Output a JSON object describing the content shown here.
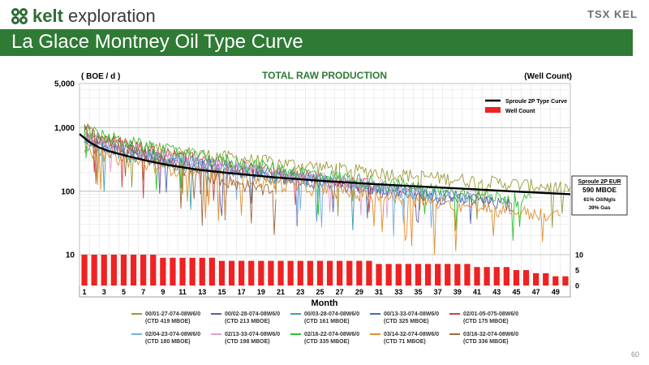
{
  "header": {
    "logo_text_bold": "kelt",
    "logo_text": "exploration",
    "tsx_logo": "TSX KEL",
    "title": "La Glace Montney Oil Type Curve",
    "page_number": "60"
  },
  "colors": {
    "banner": "#2f7a34",
    "logo_green": "#2e6b35",
    "bars": "#ee2222",
    "type_curve": "#000000"
  },
  "chart_data": {
    "type": "line",
    "title": "TOTAL RAW PRODUCTION",
    "ylabel_left": "( BOE / d )",
    "ylabel_right": "(Well Count)",
    "xlabel": "Month",
    "y_scale": "log",
    "ylim": [
      10,
      5000
    ],
    "y_ticks": [
      10,
      100,
      1000,
      5000
    ],
    "y_tick_labels": [
      "10",
      "100",
      "1,000",
      "5,000"
    ],
    "y2_ticks": [
      0,
      5,
      10
    ],
    "y2_tick_labels": [
      "0",
      "5",
      "10"
    ],
    "y2lim": [
      0,
      10
    ],
    "xlim": [
      0,
      50
    ],
    "x_ticks": [
      1,
      3,
      5,
      7,
      9,
      11,
      13,
      15,
      17,
      19,
      21,
      23,
      25,
      27,
      29,
      31,
      33,
      35,
      37,
      39,
      41,
      43,
      45,
      47,
      49
    ],
    "x_tick_labels": [
      "1",
      "3",
      "5",
      "7",
      "9",
      "11",
      "13",
      "15",
      "17",
      "19",
      "21",
      "23",
      "25",
      "27",
      "29",
      "31",
      "33",
      "35",
      "37",
      "39",
      "41",
      "43",
      "45",
      "47",
      "49"
    ],
    "grid": true,
    "legend_position": "top-right",
    "legend": [
      {
        "name": "Sproule 2P Type Curve",
        "kind": "line",
        "color": "#000000"
      },
      {
        "name": "Well Count",
        "kind": "bar",
        "color": "#ee2222"
      }
    ],
    "annotation_box": {
      "title": "Sproule 2P EUR",
      "value": "590 MBOE",
      "line1": "61% Oil/Ngls",
      "line2": "39% Gas"
    },
    "type_curve": {
      "name": "Sproule 2P Type Curve",
      "x": [
        0,
        1,
        2,
        3,
        4,
        5,
        7,
        9,
        12,
        15,
        20,
        25,
        30,
        35,
        40,
        45,
        50
      ],
      "y": [
        800,
        600,
        490,
        430,
        390,
        355,
        300,
        260,
        220,
        195,
        165,
        145,
        130,
        118,
        108,
        98,
        90
      ]
    },
    "well_count": {
      "x": [
        1,
        2,
        3,
        4,
        5,
        6,
        7,
        8,
        9,
        10,
        11,
        12,
        13,
        14,
        15,
        16,
        17,
        18,
        19,
        20,
        21,
        22,
        23,
        24,
        25,
        26,
        27,
        28,
        29,
        30,
        31,
        32,
        33,
        34,
        35,
        36,
        37,
        38,
        39,
        40,
        41,
        42,
        43,
        44,
        45,
        46,
        47,
        48,
        49,
        50
      ],
      "values": [
        10,
        10,
        10,
        10,
        10,
        10,
        10,
        10,
        9,
        9,
        9,
        9,
        9,
        9,
        8,
        8,
        8,
        8,
        8,
        8,
        8,
        8,
        8,
        8,
        8,
        8,
        8,
        8,
        8,
        8,
        7,
        7,
        7,
        7,
        7,
        7,
        7,
        7,
        7,
        7,
        6,
        6,
        6,
        6,
        5,
        5,
        4,
        4,
        3,
        3
      ]
    },
    "wells": [
      {
        "name": "00/01-27-074-08W6/0",
        "ctd": "(CTD 419 MBOE)",
        "color": "#9a9a3a",
        "start": 800,
        "end": 110,
        "months": 50
      },
      {
        "name": "00/02-28-074-08W6/0",
        "ctd": "(CTD 213 MBOE)",
        "color": "#6a5aa0",
        "start": 700,
        "end": 60,
        "months": 44
      },
      {
        "name": "00/03-28-074-08W6/0",
        "ctd": "(CTD 161 MBOE)",
        "color": "#3aa0b0",
        "start": 600,
        "end": 90,
        "months": 36
      },
      {
        "name": "00/13-33-074-08W6/0",
        "ctd": "(CTD 325 MBOE)",
        "color": "#4a6ab0",
        "start": 750,
        "end": 70,
        "months": 42
      },
      {
        "name": "02/01-05-075-08W6/0",
        "ctd": "(CTD 175 MBOE)",
        "color": "#d04040",
        "start": 900,
        "end": 120,
        "months": 30
      },
      {
        "name": "02/04-23-074-08W6/0",
        "ctd": "(CTD 180 MBOE)",
        "color": "#7ab0e0",
        "start": 650,
        "end": 80,
        "months": 40
      },
      {
        "name": "02/13-33-074-08W6/0",
        "ctd": "(CTD 198 MBOE)",
        "color": "#e0a0d0",
        "start": 800,
        "end": 100,
        "months": 35
      },
      {
        "name": "02/16-22-074-08W6/0",
        "ctd": "(CTD 335 MBOE)",
        "color": "#30c030",
        "start": 1000,
        "end": 70,
        "months": 46
      },
      {
        "name": "03/14-32-074-08W6/0",
        "ctd": "(CTD 71 MBOE)",
        "color": "#e09030",
        "start": 500,
        "end": 40,
        "months": 49
      },
      {
        "name": "03/16-32-074-08W6/0",
        "ctd": "(CTD 336 MBOE)",
        "color": "#a06a3a",
        "start": 1100,
        "end": 90,
        "months": 20
      }
    ]
  }
}
